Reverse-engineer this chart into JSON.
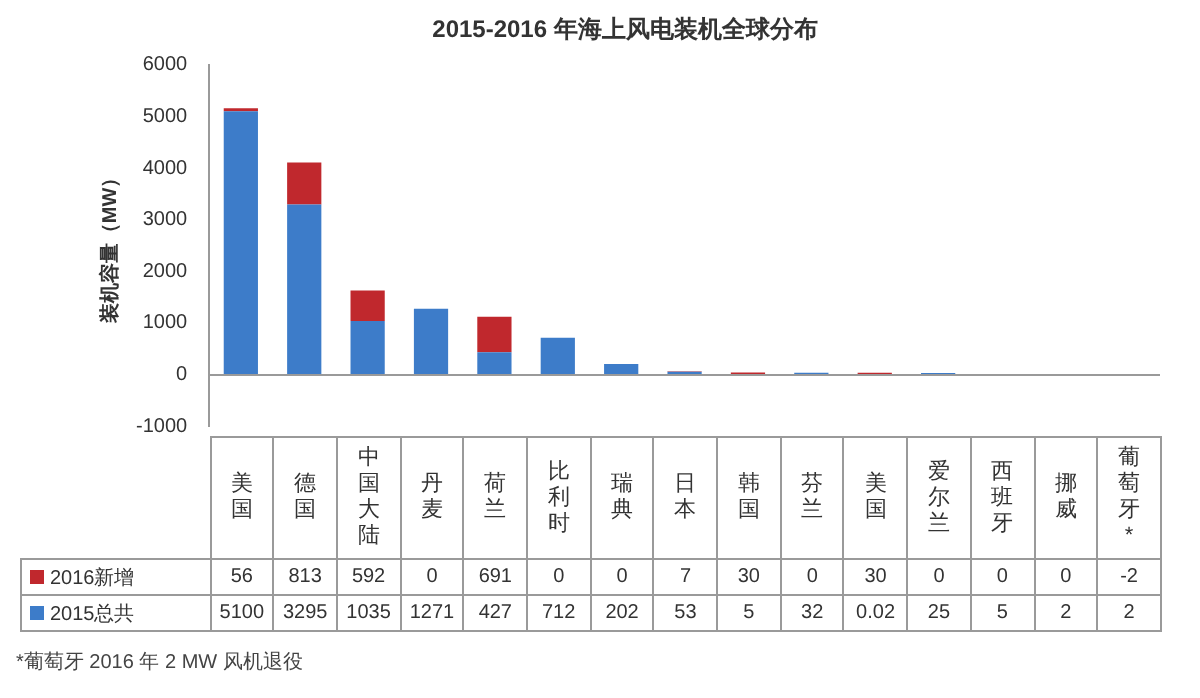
{
  "chart_data": {
    "type": "bar",
    "title": "2015-2016 年海上风电装机全球分布",
    "ylabel": "装机容量（MW）",
    "categories": [
      "美国",
      "德国",
      "中国大陆",
      "丹麦",
      "荷兰",
      "比利时",
      "瑞典",
      "日本",
      "韩国",
      "芬兰",
      "美国",
      "爱尔兰",
      "西班牙",
      "挪威",
      "葡萄牙*"
    ],
    "series": [
      {
        "name": "2015总共",
        "color": "#3d7cc9",
        "values": [
          5100,
          3295,
          1035,
          1271,
          427,
          712,
          202,
          53,
          5,
          32,
          0.02,
          25,
          5,
          2,
          2
        ]
      },
      {
        "name": "2016新增",
        "color": "#c0282d",
        "values": [
          56,
          813,
          592,
          0,
          691,
          0,
          0,
          7,
          30,
          0,
          30,
          0,
          0,
          0,
          -2
        ]
      }
    ],
    "stacked": true,
    "ylim": [
      -1000,
      6000
    ],
    "yticks": [
      -1000,
      0,
      1000,
      2000,
      3000,
      4000,
      5000,
      6000
    ],
    "ref_lines": [
      {
        "axis": "y",
        "value": 0,
        "color": "#9a9a9a"
      }
    ],
    "grid": false,
    "legend": "bottom",
    "data_labels": true,
    "annotations": [
      "*葡萄牙 2016 年 2 MW 风机退役"
    ]
  }
}
